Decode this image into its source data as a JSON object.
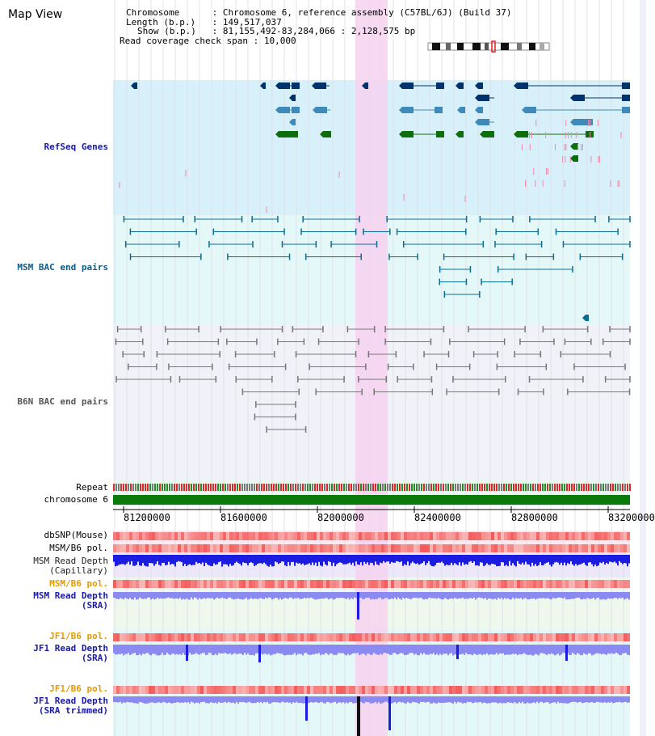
{
  "app": {
    "title": "Map View"
  },
  "info": {
    "chromosome_label": "Chromosome",
    "chromosome_value": "Chromosome 6, reference assembly (C57BL/6J) (Build 37)",
    "length_label": "Length (b.p.)",
    "length_value": "149,517,037",
    "show_label": "Show (b.p.)",
    "show_value": "81,155,492-83,284,066 : 2,128,575 bp",
    "coverage_label": "Read coverage check span",
    "coverage_value": "10,000"
  },
  "tracks": {
    "refseq": "RefSeq Genes",
    "msm_bac": "MSM BAC end pairs",
    "b6n_bac": "B6N BAC end pairs",
    "repeat": "Repeat",
    "chromosome": "chromosome 6",
    "dbsnp": "dbSNP(Mouse)",
    "msm_b6_pol": "MSM/B6 pol.",
    "msm_read_depth_cap_1": "MSM Read Depth",
    "msm_read_depth_cap_2": "(Capillary)",
    "msm_b6_pol_2": "MSM/B6 pol.",
    "msm_read_depth_sra_1": "MSM Read Depth",
    "msm_read_depth_sra_2": "(SRA)",
    "jf1_b6_pol": "JF1/B6 pol.",
    "jf1_read_depth_1": "JF1 Read Depth",
    "jf1_read_depth_2": "(SRA)",
    "jf1_b6_pol_2": "JF1/B6 pol.",
    "jf1_trim_1": "JF1 Read Depth",
    "jf1_trim_2": "(SRA trimmed)"
  },
  "axis": {
    "ticks": [
      "81200000",
      "81600000",
      "82000000",
      "82400000",
      "82800000",
      "83200000"
    ]
  },
  "colors": {
    "refseq_bg": "#d8f0fa",
    "msm_bac_bg": "#e4f8f8",
    "b6n_bac_bg": "#f1f2f8",
    "highlight": "#f7d2f0",
    "chromosome_bar": "#0a7a0a",
    "gene_dark": "#00336b",
    "gene_mid": "#3f8ab8",
    "gene_green": "#0e6e0e",
    "read_depth": "#1c1ce0",
    "read_depth_light": "#8a8af0",
    "snp": "#f25a5a"
  }
}
